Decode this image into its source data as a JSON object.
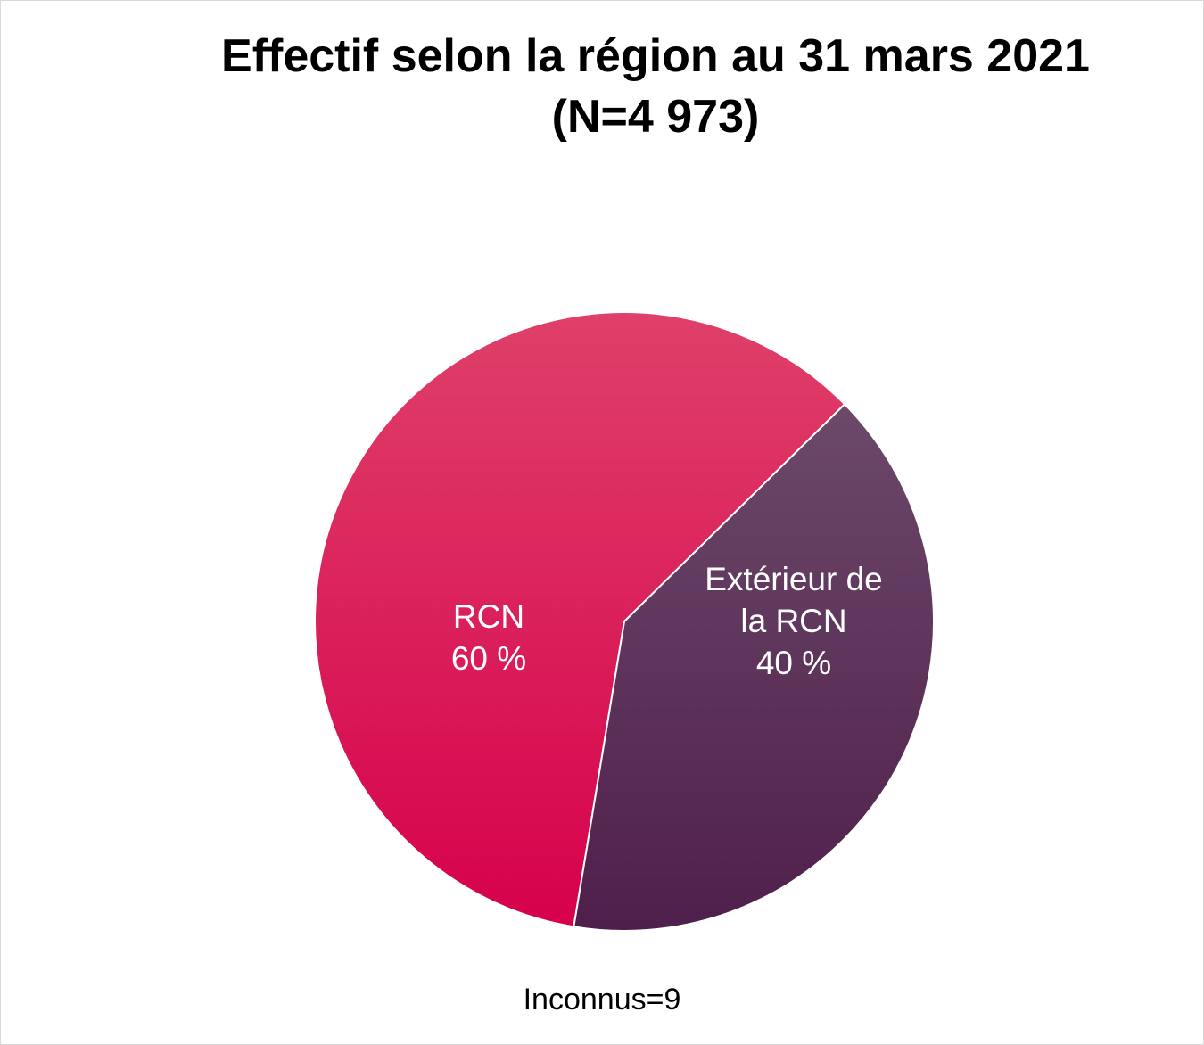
{
  "chart_data": {
    "type": "pie",
    "title_line1": "Effectif selon la région au 31 mars 2021",
    "title_line2": "(N=4 973)",
    "slices": [
      {
        "label_lines": [
          "RCN",
          "60 %"
        ],
        "value": 60,
        "color_top": "#df4069",
        "color_bottom": "#d6004c"
      },
      {
        "label_lines": [
          "Extérieur de",
          "la RCN",
          "40 %"
        ],
        "value": 40,
        "color_top": "#71506f",
        "color_bottom": "#4f1f4b"
      }
    ],
    "note": "Inconnus=9",
    "legend": "none"
  }
}
